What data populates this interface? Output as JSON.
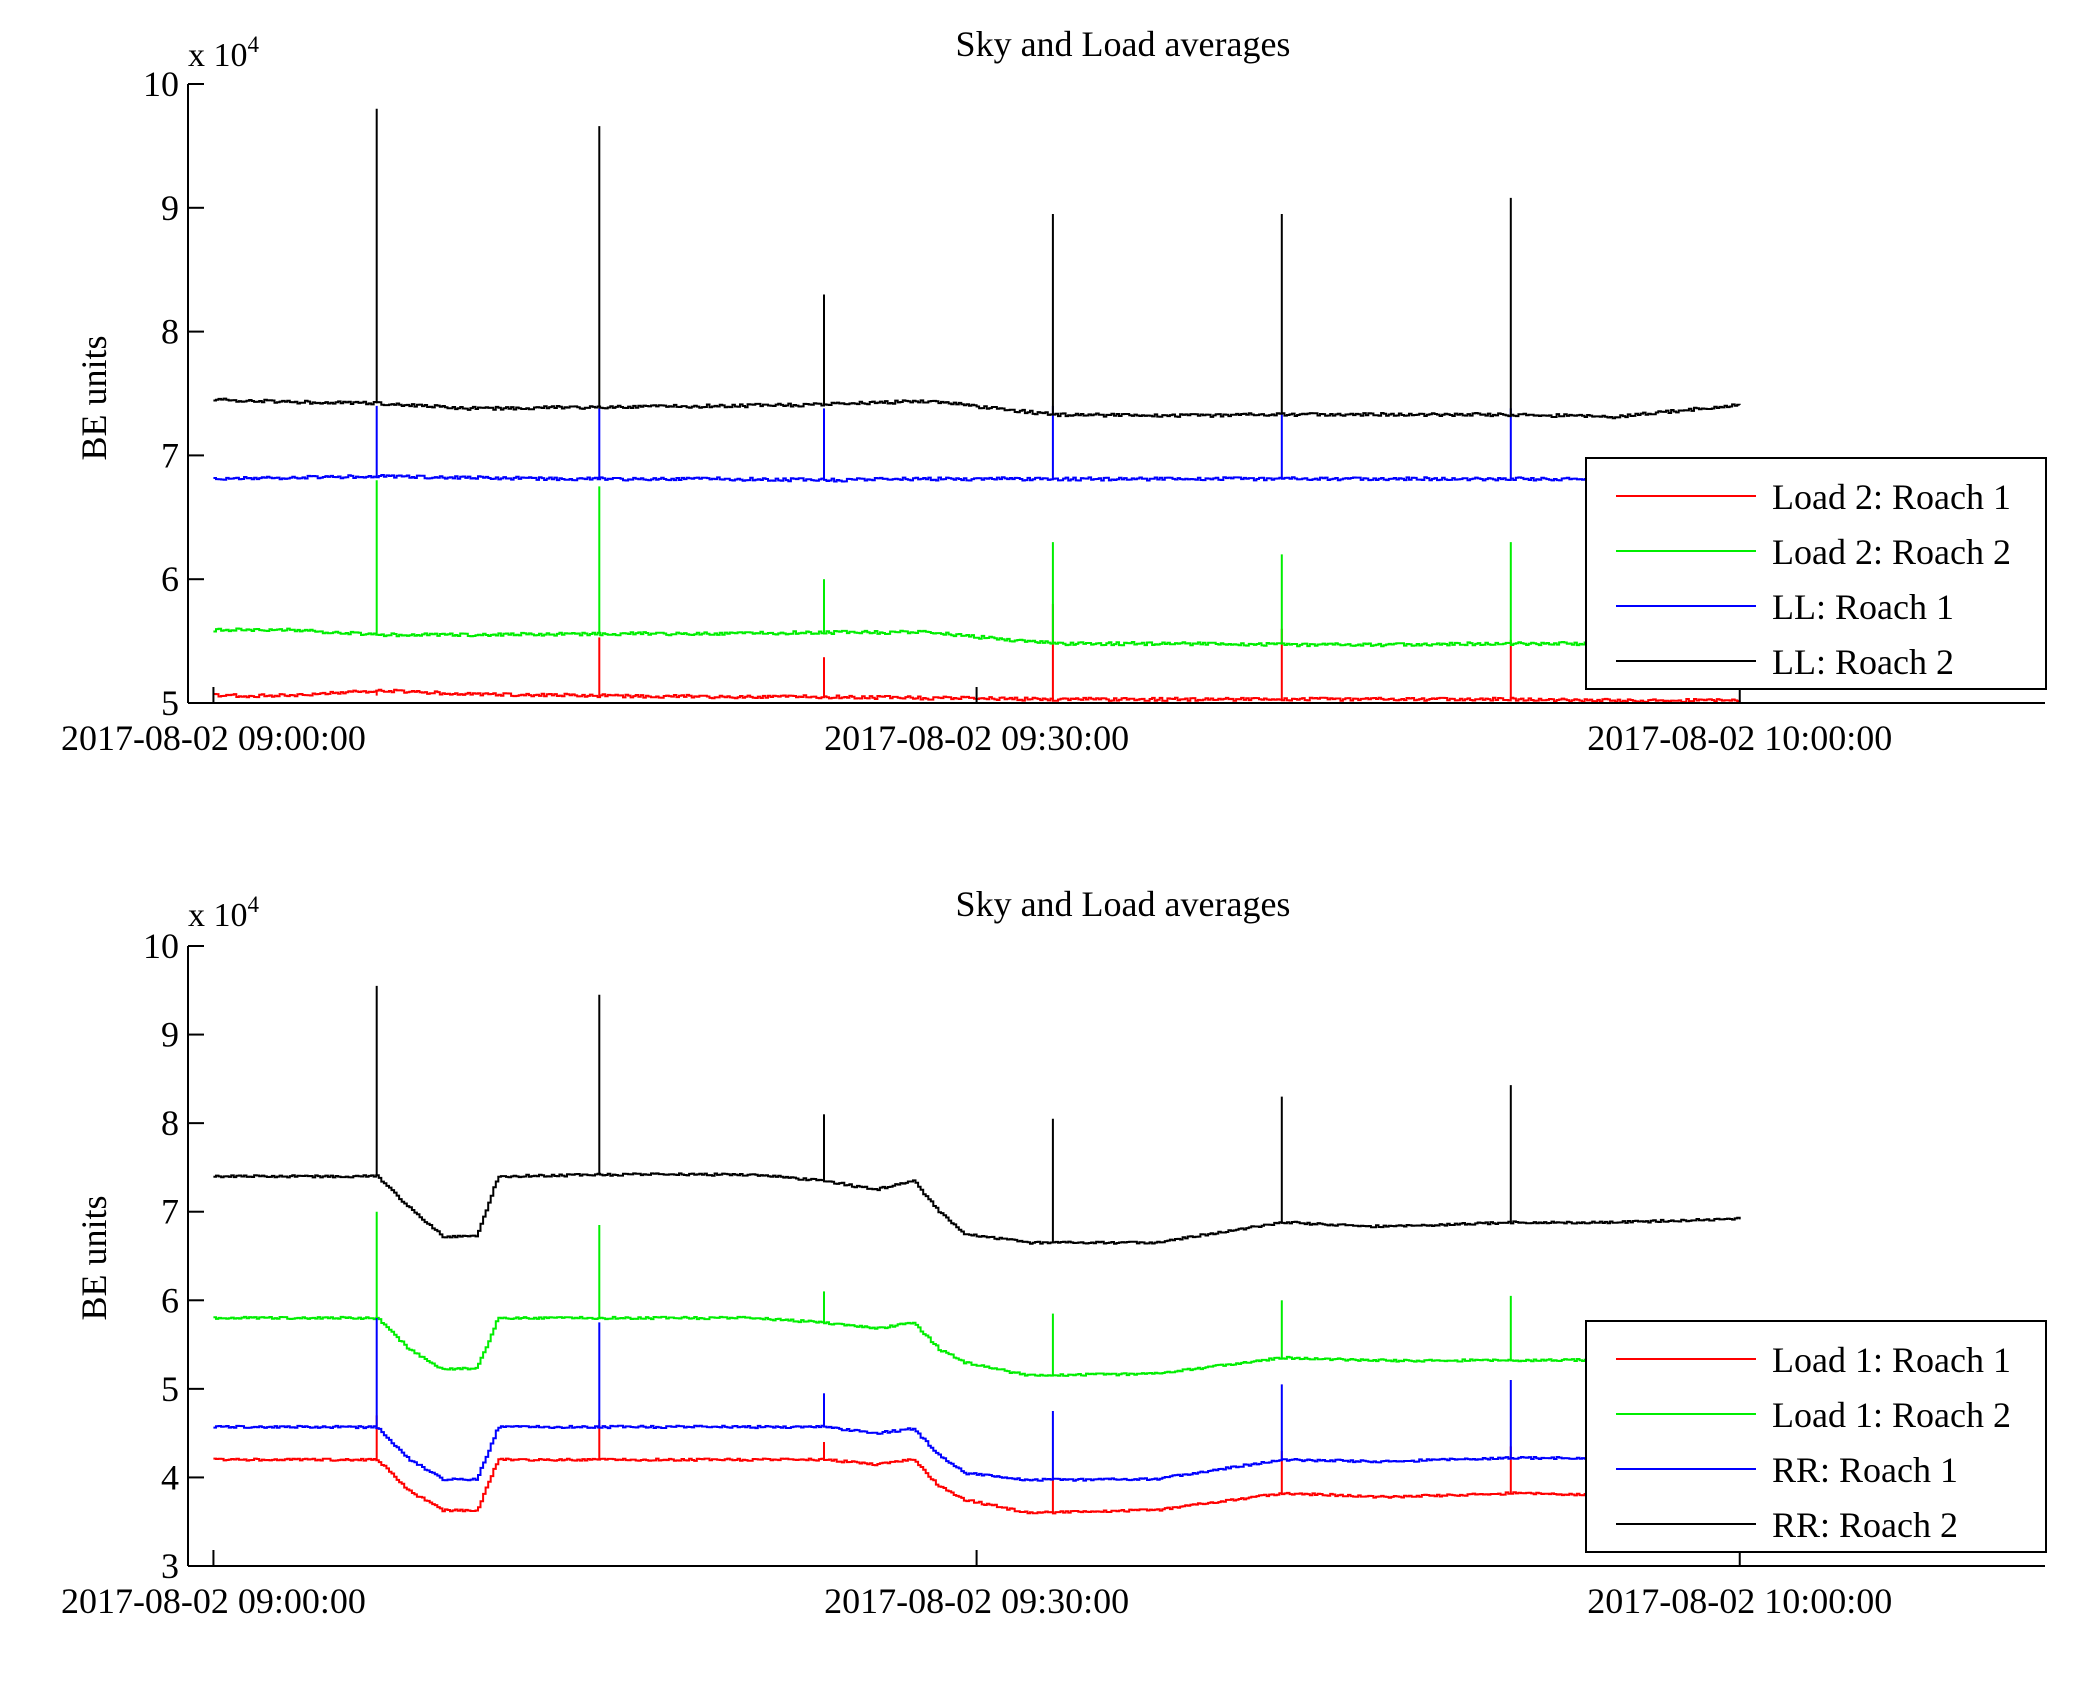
{
  "chart_data": [
    {
      "type": "line",
      "title": "Sky and Load averages",
      "ylabel": "BE units",
      "y_multiplier_label": "x 10",
      "y_multiplier_exponent": "4",
      "ylim": [
        50000,
        100000
      ],
      "y_ticks": [
        "5",
        "6",
        "7",
        "8",
        "9",
        "10"
      ],
      "xlim": [
        "2017-08-02 08:59:00",
        "2017-08-02 10:12:00"
      ],
      "x_ticks": [
        "2017-08-02 09:00:00",
        "2017-08-02 09:30:00",
        "2017-08-02 10:00:00"
      ],
      "legend_position": "bottom-right",
      "spike_times": [
        "2017-08-02 09:06:25",
        "2017-08-02 09:15:10",
        "2017-08-02 09:24:00",
        "2017-08-02 09:33:00",
        "2017-08-02 09:42:00",
        "2017-08-02 09:51:00"
      ],
      "series": [
        {
          "name": "Load 2: Roach 1",
          "color": "#ff0000",
          "x": [
            "2017-08-02 09:00:00",
            "2017-08-02 09:03:00",
            "2017-08-02 09:06:25",
            "2017-08-02 09:10:00",
            "2017-08-02 09:15:10",
            "2017-08-02 09:20:00",
            "2017-08-02 09:24:00",
            "2017-08-02 09:28:00",
            "2017-08-02 09:33:00",
            "2017-08-02 09:38:00",
            "2017-08-02 09:42:00",
            "2017-08-02 09:46:00",
            "2017-08-02 09:51:00",
            "2017-08-02 09:55:00",
            "2017-08-02 10:00:00"
          ],
          "y": [
            50600,
            50600,
            51000,
            50700,
            50600,
            50500,
            50500,
            50400,
            50300,
            50300,
            50300,
            50300,
            50300,
            50200,
            50200
          ],
          "spikes": [
            50600,
            55300,
            53700,
            58000,
            56000,
            55100
          ]
        },
        {
          "name": "Load 2: Roach 2",
          "color": "#00ee00",
          "x": [
            "2017-08-02 09:00:00",
            "2017-08-02 09:03:00",
            "2017-08-02 09:06:25",
            "2017-08-02 09:10:00",
            "2017-08-02 09:15:10",
            "2017-08-02 09:20:00",
            "2017-08-02 09:24:00",
            "2017-08-02 09:28:00",
            "2017-08-02 09:33:00",
            "2017-08-02 09:38:00",
            "2017-08-02 09:42:00",
            "2017-08-02 09:46:00",
            "2017-08-02 09:51:00",
            "2017-08-02 09:55:00",
            "2017-08-02 10:00:00"
          ],
          "y": [
            55900,
            55900,
            55500,
            55500,
            55600,
            55600,
            55700,
            55700,
            54800,
            54800,
            54700,
            54700,
            54800,
            54800,
            54800
          ],
          "spikes": [
            68000,
            67500,
            60000,
            63000,
            62000,
            63000
          ]
        },
        {
          "name": "LL: Roach 1",
          "color": "#0000ff",
          "x": [
            "2017-08-02 09:00:00",
            "2017-08-02 09:03:00",
            "2017-08-02 09:06:25",
            "2017-08-02 09:10:00",
            "2017-08-02 09:15:10",
            "2017-08-02 09:20:00",
            "2017-08-02 09:24:00",
            "2017-08-02 09:28:00",
            "2017-08-02 09:33:00",
            "2017-08-02 09:38:00",
            "2017-08-02 09:42:00",
            "2017-08-02 09:46:00",
            "2017-08-02 09:51:00",
            "2017-08-02 09:55:00",
            "2017-08-02 10:00:00"
          ],
          "y": [
            68100,
            68200,
            68300,
            68200,
            68100,
            68100,
            68000,
            68100,
            68100,
            68100,
            68100,
            68100,
            68100,
            68100,
            68100
          ],
          "spikes": [
            74000,
            73800,
            73800,
            74000,
            73500,
            73800
          ]
        },
        {
          "name": "LL: Roach 2",
          "color": "#000000",
          "x": [
            "2017-08-02 09:00:00",
            "2017-08-02 09:03:00",
            "2017-08-02 09:06:25",
            "2017-08-02 09:10:00",
            "2017-08-02 09:15:10",
            "2017-08-02 09:20:00",
            "2017-08-02 09:24:00",
            "2017-08-02 09:28:00",
            "2017-08-02 09:33:00",
            "2017-08-02 09:38:00",
            "2017-08-02 09:42:00",
            "2017-08-02 09:46:00",
            "2017-08-02 09:51:00",
            "2017-08-02 09:55:00",
            "2017-08-02 10:00:00"
          ],
          "y": [
            74500,
            74300,
            74200,
            73800,
            73900,
            74000,
            74100,
            74400,
            73300,
            73200,
            73300,
            73300,
            73300,
            73100,
            74100
          ],
          "spikes": [
            98000,
            96600,
            83000,
            89500,
            89500,
            90800
          ]
        }
      ]
    },
    {
      "type": "line",
      "title": "Sky and Load averages",
      "ylabel": "BE units",
      "y_multiplier_label": "x 10",
      "y_multiplier_exponent": "4",
      "ylim": [
        30000,
        100000
      ],
      "y_ticks": [
        "3",
        "4",
        "5",
        "6",
        "7",
        "8",
        "9",
        "10"
      ],
      "xlim": [
        "2017-08-02 08:59:00",
        "2017-08-02 10:12:00"
      ],
      "x_ticks": [
        "2017-08-02 09:00:00",
        "2017-08-02 09:30:00",
        "2017-08-02 10:00:00"
      ],
      "legend_position": "bottom-right",
      "spike_times": [
        "2017-08-02 09:06:25",
        "2017-08-02 09:15:10",
        "2017-08-02 09:24:00",
        "2017-08-02 09:33:00",
        "2017-08-02 09:42:00",
        "2017-08-02 09:51:00"
      ],
      "series": [
        {
          "name": "Load 1: Roach 1",
          "color": "#ff0000",
          "x": [
            "2017-08-02 09:00:00",
            "2017-08-02 09:06:25",
            "2017-08-02 09:07:40",
            "2017-08-02 09:09:00",
            "2017-08-02 09:10:20",
            "2017-08-02 09:11:10",
            "2017-08-02 09:16:00",
            "2017-08-02 09:21:00",
            "2017-08-02 09:24:00",
            "2017-08-02 09:26:00",
            "2017-08-02 09:27:30",
            "2017-08-02 09:28:30",
            "2017-08-02 09:29:30",
            "2017-08-02 09:32:00",
            "2017-08-02 09:37:00",
            "2017-08-02 09:42:00",
            "2017-08-02 09:46:00",
            "2017-08-02 09:51:00",
            "2017-08-02 09:55:00",
            "2017-08-02 10:00:00"
          ],
          "y": [
            42000,
            42000,
            38500,
            36300,
            36300,
            42000,
            42000,
            42000,
            42000,
            41500,
            42000,
            39000,
            37500,
            36000,
            36300,
            38200,
            37800,
            38200,
            38000,
            38500
          ],
          "spikes": [
            47000,
            46500,
            44000,
            40000,
            43000,
            43500
          ]
        },
        {
          "name": "Load 1: Roach 2",
          "color": "#00ee00",
          "x": [
            "2017-08-02 09:00:00",
            "2017-08-02 09:06:25",
            "2017-08-02 09:07:40",
            "2017-08-02 09:09:00",
            "2017-08-02 09:10:20",
            "2017-08-02 09:11:10",
            "2017-08-02 09:16:00",
            "2017-08-02 09:21:00",
            "2017-08-02 09:24:00",
            "2017-08-02 09:26:00",
            "2017-08-02 09:27:30",
            "2017-08-02 09:28:30",
            "2017-08-02 09:29:30",
            "2017-08-02 09:32:00",
            "2017-08-02 09:37:00",
            "2017-08-02 09:42:00",
            "2017-08-02 09:46:00",
            "2017-08-02 09:51:00",
            "2017-08-02 09:55:00",
            "2017-08-02 10:00:00"
          ],
          "y": [
            58000,
            58000,
            54500,
            52200,
            52300,
            58000,
            58000,
            58000,
            57500,
            56800,
            57500,
            54500,
            53000,
            51500,
            51700,
            53500,
            53200,
            53200,
            53300,
            53500
          ],
          "spikes": [
            70000,
            68500,
            61000,
            58500,
            60000,
            60500
          ]
        },
        {
          "name": "RR: Roach 1",
          "color": "#0000ff",
          "x": [
            "2017-08-02 09:00:00",
            "2017-08-02 09:06:25",
            "2017-08-02 09:07:40",
            "2017-08-02 09:09:00",
            "2017-08-02 09:10:20",
            "2017-08-02 09:11:10",
            "2017-08-02 09:16:00",
            "2017-08-02 09:21:00",
            "2017-08-02 09:24:00",
            "2017-08-02 09:26:00",
            "2017-08-02 09:27:30",
            "2017-08-02 09:28:30",
            "2017-08-02 09:29:30",
            "2017-08-02 09:32:00",
            "2017-08-02 09:37:00",
            "2017-08-02 09:42:00",
            "2017-08-02 09:46:00",
            "2017-08-02 09:51:00",
            "2017-08-02 09:55:00",
            "2017-08-02 10:00:00"
          ],
          "y": [
            45700,
            45700,
            42000,
            39800,
            39800,
            45700,
            45700,
            45700,
            45700,
            45000,
            45500,
            42500,
            40500,
            39700,
            39800,
            42000,
            41800,
            42200,
            42200,
            42300
          ],
          "spikes": [
            58000,
            57500,
            49500,
            47500,
            50500,
            51000
          ]
        },
        {
          "name": "RR: Roach 2",
          "color": "#000000",
          "x": [
            "2017-08-02 09:00:00",
            "2017-08-02 09:06:25",
            "2017-08-02 09:07:40",
            "2017-08-02 09:09:00",
            "2017-08-02 09:10:20",
            "2017-08-02 09:11:10",
            "2017-08-02 09:16:00",
            "2017-08-02 09:21:00",
            "2017-08-02 09:24:00",
            "2017-08-02 09:26:00",
            "2017-08-02 09:27:30",
            "2017-08-02 09:28:30",
            "2017-08-02 09:29:30",
            "2017-08-02 09:32:00",
            "2017-08-02 09:37:00",
            "2017-08-02 09:42:00",
            "2017-08-02 09:46:00",
            "2017-08-02 09:51:00",
            "2017-08-02 09:55:00",
            "2017-08-02 10:00:00"
          ],
          "y": [
            74000,
            74000,
            70500,
            67200,
            67200,
            74000,
            74200,
            74200,
            73500,
            72500,
            73500,
            70000,
            67500,
            66500,
            66500,
            68800,
            68300,
            68800,
            68800,
            69200
          ],
          "spikes": [
            95500,
            94500,
            81000,
            80500,
            83000,
            84300
          ]
        }
      ]
    }
  ]
}
